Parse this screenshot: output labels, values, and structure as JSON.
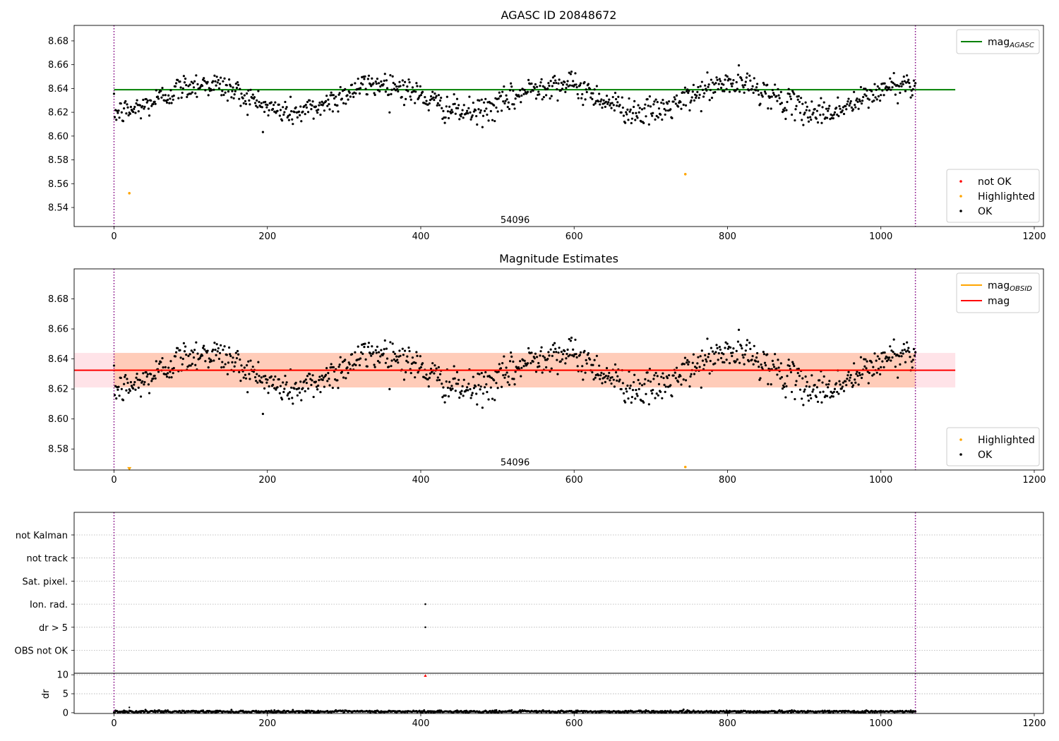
{
  "chart_data": [
    {
      "type": "scatter",
      "title": "AGASC ID 20848672",
      "xlabel": "",
      "ylabel": "",
      "xlim": [
        -52,
        1212
      ],
      "ylim": [
        8.524,
        8.693
      ],
      "xticks": [
        0,
        200,
        400,
        600,
        800,
        1000,
        1200
      ],
      "yticks": [
        8.54,
        8.56,
        8.58,
        8.6,
        8.62,
        8.64,
        8.66,
        8.68
      ],
      "grid": false,
      "annotation": {
        "text": "54096",
        "x": 523,
        "y": 8.527
      },
      "vlines": [
        {
          "x": 0,
          "color": "#800080",
          "style": "dotted"
        },
        {
          "x": 1045,
          "color": "#800080",
          "style": "dotted"
        }
      ],
      "hlines": [
        {
          "name": "mag",
          "subscript": "AGASC",
          "y": 8.639,
          "x_start": 0,
          "x_end": 1097,
          "color": "#008000"
        }
      ],
      "legend_lines": {
        "placement": "upper-right",
        "entries": [
          {
            "label": "mag",
            "subscript": "AGASC",
            "color": "#008000"
          }
        ]
      },
      "legend_points": {
        "placement": "lower-right",
        "entries": [
          {
            "label": "not OK",
            "color": "#ff0000"
          },
          {
            "label": "Highlighted",
            "color": "#ffa500"
          },
          {
            "label": "OK",
            "color": "#000000"
          }
        ]
      },
      "series": [
        {
          "name": "not OK",
          "color": "#ff0000",
          "points": []
        },
        {
          "name": "Highlighted",
          "color": "#ffa500",
          "points": [
            [
              20,
              8.552
            ],
            [
              745,
              8.568
            ]
          ]
        },
        {
          "name": "OK",
          "color": "#000000",
          "generated": true,
          "x_range": [
            0,
            1045
          ],
          "n_points": 1045,
          "mean": 8.632,
          "scatter": 0.008
        }
      ]
    },
    {
      "type": "scatter",
      "title": "Magnitude Estimates",
      "xlabel": "",
      "ylabel": "",
      "xlim": [
        -52,
        1212
      ],
      "ylim": [
        8.566,
        8.7
      ],
      "xticks": [
        0,
        200,
        400,
        600,
        800,
        1000,
        1200
      ],
      "yticks": [
        8.58,
        8.6,
        8.62,
        8.64,
        8.66,
        8.68
      ],
      "grid": false,
      "annotation": {
        "text": "54096",
        "x": 523,
        "y": 8.569
      },
      "vlines": [
        {
          "x": 0,
          "color": "#800080",
          "style": "dotted"
        },
        {
          "x": 1045,
          "color": "#800080",
          "style": "dotted"
        }
      ],
      "bands": [
        {
          "y_low": 8.621,
          "y_high": 8.644,
          "x_start": -52,
          "x_end": 1097,
          "color": "#ffc0cb",
          "opacity": 0.45
        },
        {
          "y_low": 8.621,
          "y_high": 8.644,
          "x_start": 0,
          "x_end": 1045,
          "color": "#ffa060",
          "opacity": 0.35
        }
      ],
      "hlines": [
        {
          "name": "mag",
          "subscript": "OBSID",
          "y": 8.6325,
          "x_start": 0,
          "x_end": 1045,
          "color": "#ffa500"
        },
        {
          "name": "mag",
          "subscript": "",
          "y": 8.6325,
          "x_start": -52,
          "x_end": 1097,
          "color": "#ff0000"
        }
      ],
      "legend_lines": {
        "placement": "upper-right",
        "entries": [
          {
            "label": "mag",
            "subscript": "OBSID",
            "color": "#ffa500"
          },
          {
            "label": "mag",
            "subscript": "",
            "color": "#ff0000"
          }
        ]
      },
      "legend_points": {
        "placement": "lower-right",
        "entries": [
          {
            "label": "Highlighted",
            "color": "#ffa500"
          },
          {
            "label": "OK",
            "color": "#000000"
          }
        ]
      },
      "series": [
        {
          "name": "Highlighted",
          "color": "#ffa500",
          "points": [
            [
              20,
              8.567
            ],
            [
              745,
              8.568
            ]
          ],
          "markers": [
            {
              "x": 20,
              "shape": "triangle-down"
            }
          ]
        },
        {
          "name": "OK",
          "color": "#000000",
          "generated": true,
          "same_as_panel": 0
        }
      ]
    },
    {
      "type": "scatter",
      "title": "",
      "xlabel": "",
      "ylabel": "",
      "xlim": [
        -52,
        1212
      ],
      "categories": [
        "OBS not OK",
        "dr > 5",
        "Ion. rad.",
        "Sat. pixel.",
        "not track",
        "not Kalman"
      ],
      "grid": "y-dotted",
      "vlines": [
        {
          "x": 0,
          "color": "#800080",
          "style": "dotted"
        },
        {
          "x": 1045,
          "color": "#800080",
          "style": "dotted"
        }
      ],
      "points": [
        {
          "x": 406,
          "category": "Ion. rad."
        },
        {
          "x": 406,
          "category": "dr > 5"
        }
      ]
    },
    {
      "type": "scatter",
      "title": "",
      "xlabel": "",
      "ylabel": "dr",
      "xlim": [
        -52,
        1212
      ],
      "ylim": [
        -0.2,
        10.4
      ],
      "xticks": [
        0,
        200,
        400,
        600,
        800,
        1000,
        1200
      ],
      "yticks": [
        0,
        5,
        10
      ],
      "grid": "y-dotted",
      "vlines": [
        {
          "x": 0,
          "color": "#800080",
          "style": "dotted"
        },
        {
          "x": 1045,
          "color": "#800080",
          "style": "dotted"
        }
      ],
      "series": [
        {
          "name": "dr",
          "color": "#000000",
          "generated": true,
          "x_range": [
            0,
            1045
          ],
          "n_points": 1045,
          "mean": 0.3,
          "scatter": 0.15
        },
        {
          "name": "dr outlier",
          "color": "#ff0000",
          "points": [
            [
              406,
              9.8
            ]
          ]
        },
        {
          "name": "dr spike",
          "color": "#000000",
          "points": [
            [
              20,
              1.4
            ]
          ]
        }
      ]
    }
  ]
}
